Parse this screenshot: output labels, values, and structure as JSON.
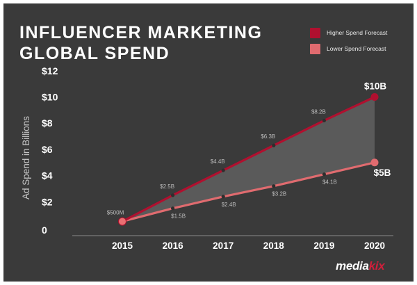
{
  "title_lines": [
    "INFLUENCER MARKETING",
    "GLOBAL SPEND"
  ],
  "legend": [
    {
      "label": "Higher Spend Forecast",
      "color": "#b0102f"
    },
    {
      "label": "Lower Spend Forecast",
      "color": "#e06b6f"
    }
  ],
  "brand": {
    "main": "media",
    "accent": "kix"
  },
  "colors": {
    "background": "#3a3a3a",
    "fill": "#5a5a5a",
    "text": "#ffffff",
    "muted": "#c8c8c8"
  },
  "chart_data": {
    "type": "area",
    "title": "INFLUENCER MARKETING GLOBAL SPEND",
    "ylabel": "Ad Spend in Billions",
    "xlabel": "",
    "x": [
      2015,
      2016,
      2017,
      2018,
      2019,
      2020
    ],
    "ylim": [
      0,
      12
    ],
    "ytick_labels": [
      "0",
      "$2",
      "$4",
      "$6",
      "$8",
      "$10",
      "$12"
    ],
    "ytick_values": [
      0,
      2,
      4,
      6,
      8,
      10,
      12
    ],
    "grid": false,
    "legend_position": "top-right",
    "series": [
      {
        "name": "Higher Spend Forecast",
        "color": "#b0102f",
        "values": [
          0.5,
          2.5,
          4.4,
          6.3,
          8.2,
          10
        ],
        "labels": [
          "$500M",
          "$2.5B",
          "$4.4B",
          "$6.3B",
          "$8.2B",
          "$10B"
        ]
      },
      {
        "name": "Lower Spend Forecast",
        "color": "#e06b6f",
        "values": [
          0.5,
          1.5,
          2.4,
          3.2,
          4.1,
          5
        ],
        "labels": [
          "",
          "$1.5B",
          "$2.4B",
          "$3.2B",
          "$4.1B",
          "$5B"
        ]
      }
    ]
  }
}
